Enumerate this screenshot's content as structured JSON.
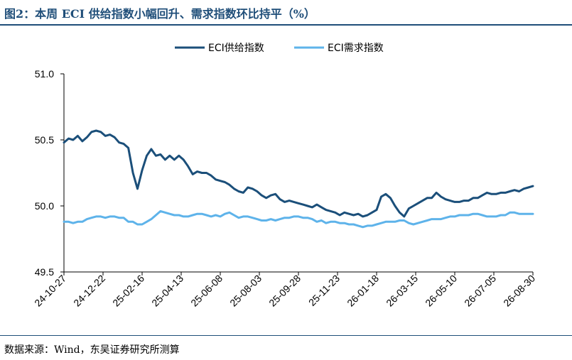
{
  "title": "图2：本周 ECI 供给指数小幅回升、需求指数环比持平（%）",
  "source": "数据来源：Wind，东吴证券研究所测算",
  "colors": {
    "supply": "#1b4f7a",
    "demand": "#5eb3ea",
    "title": "#1f4e79"
  },
  "chart_data": {
    "type": "line",
    "title": "图2：本周 ECI 供给指数小幅回升、需求指数环比持平（%）",
    "xlabel": "",
    "ylabel": "",
    "ylim": [
      49.5,
      51.0
    ],
    "yticks": [
      "51.0",
      "50.5",
      "50.0",
      "49.5"
    ],
    "x_tick_labels": [
      "24-10-27",
      "24-12-22",
      "25-02-16",
      "25-04-13",
      "25-06-08",
      "25-08-03",
      "25-09-28",
      "25-11-23",
      "26-01-18",
      "26-03-15",
      "26-05-10",
      "26-07-05",
      "26-08-30"
    ],
    "legend_position": "top-center",
    "grid": false,
    "series": [
      {
        "name": "ECI供给指数",
        "values": [
          50.48,
          50.51,
          50.5,
          50.53,
          50.49,
          50.52,
          50.56,
          50.57,
          50.56,
          50.53,
          50.54,
          50.52,
          50.48,
          50.47,
          50.44,
          50.25,
          50.13,
          50.27,
          50.38,
          50.43,
          50.38,
          50.39,
          50.35,
          50.38,
          50.35,
          50.38,
          50.35,
          50.3,
          50.24,
          50.26,
          50.25,
          50.25,
          50.23,
          50.2,
          50.19,
          50.18,
          50.16,
          50.13,
          50.11,
          50.1,
          50.14,
          50.13,
          50.11,
          50.08,
          50.06,
          50.08,
          50.09,
          50.05,
          50.03,
          50.04,
          50.03,
          50.02,
          50.01,
          50.0,
          49.99,
          50.01,
          49.99,
          49.97,
          49.96,
          49.95,
          49.93,
          49.95,
          49.94,
          49.93,
          49.94,
          49.92,
          49.93,
          49.95,
          49.97,
          50.07,
          50.09,
          50.06,
          50.0,
          49.95,
          49.92,
          49.98,
          50.0,
          50.02,
          50.04,
          50.06,
          50.06,
          50.1,
          50.07,
          50.05,
          50.04,
          50.03,
          50.03,
          50.04,
          50.04,
          50.06,
          50.06,
          50.08,
          50.1,
          50.09,
          50.09,
          50.1,
          50.1,
          50.11,
          50.12,
          50.11,
          50.13,
          50.14,
          50.15
        ]
      },
      {
        "name": "ECI需求指数",
        "values": [
          49.88,
          49.88,
          49.87,
          49.88,
          49.88,
          49.9,
          49.91,
          49.92,
          49.92,
          49.91,
          49.92,
          49.92,
          49.91,
          49.91,
          49.88,
          49.88,
          49.86,
          49.86,
          49.88,
          49.9,
          49.93,
          49.96,
          49.95,
          49.94,
          49.93,
          49.93,
          49.92,
          49.92,
          49.93,
          49.94,
          49.94,
          49.93,
          49.92,
          49.93,
          49.92,
          49.94,
          49.95,
          49.93,
          49.91,
          49.92,
          49.92,
          49.91,
          49.9,
          49.89,
          49.89,
          49.9,
          49.89,
          49.9,
          49.91,
          49.91,
          49.92,
          49.92,
          49.91,
          49.91,
          49.9,
          49.88,
          49.89,
          49.87,
          49.88,
          49.88,
          49.87,
          49.87,
          49.86,
          49.86,
          49.85,
          49.84,
          49.85,
          49.85,
          49.86,
          49.87,
          49.88,
          49.88,
          49.88,
          49.89,
          49.89,
          49.87,
          49.86,
          49.87,
          49.88,
          49.89,
          49.9,
          49.9,
          49.9,
          49.91,
          49.92,
          49.92,
          49.93,
          49.93,
          49.93,
          49.94,
          49.94,
          49.93,
          49.92,
          49.92,
          49.92,
          49.93,
          49.93,
          49.95,
          49.95,
          49.94,
          49.94,
          49.94,
          49.94
        ]
      }
    ]
  }
}
